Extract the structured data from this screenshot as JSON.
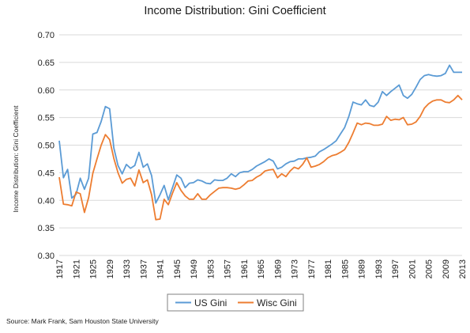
{
  "chart_data": {
    "type": "line",
    "title": "Income Distribution: Gini Coefficient",
    "ylabel": "Income Distribution: Gini Coefficient",
    "xlabel": "",
    "ylim": [
      0.3,
      0.7
    ],
    "xlim": [
      1917,
      2013
    ],
    "ytick_labels": [
      "0.30",
      "0.35",
      "0.40",
      "0.45",
      "0.50",
      "0.55",
      "0.60",
      "0.65",
      "0.70"
    ],
    "yticks": [
      0.3,
      0.35,
      0.4,
      0.45,
      0.5,
      0.55,
      0.6,
      0.65,
      0.7
    ],
    "xtick_labels": [
      "1917",
      "1921",
      "1925",
      "1929",
      "1933",
      "1937",
      "1941",
      "1945",
      "1949",
      "1953",
      "1957",
      "1961",
      "1965",
      "1969",
      "1973",
      "1977",
      "1981",
      "1985",
      "1989",
      "1993",
      "1997",
      "2001",
      "2005",
      "2009",
      "2013"
    ],
    "xticks": [
      1917,
      1921,
      1925,
      1929,
      1933,
      1937,
      1941,
      1945,
      1949,
      1953,
      1957,
      1961,
      1965,
      1969,
      1973,
      1977,
      1981,
      1985,
      1989,
      1993,
      1997,
      2001,
      2005,
      2009,
      2013
    ],
    "grid": "horizontal",
    "legend_position": "bottom",
    "series": [
      {
        "name": "US Gini",
        "color": "#5b9bd5",
        "x": [
          1917,
          1918,
          1919,
          1920,
          1921,
          1922,
          1923,
          1924,
          1925,
          1926,
          1927,
          1928,
          1929,
          1930,
          1931,
          1932,
          1933,
          1934,
          1935,
          1936,
          1937,
          1938,
          1939,
          1940,
          1941,
          1942,
          1943,
          1944,
          1945,
          1946,
          1947,
          1948,
          1949,
          1950,
          1951,
          1952,
          1953,
          1954,
          1955,
          1956,
          1957,
          1958,
          1959,
          1960,
          1961,
          1962,
          1963,
          1964,
          1965,
          1966,
          1967,
          1968,
          1969,
          1970,
          1971,
          1972,
          1973,
          1974,
          1975,
          1976,
          1977,
          1978,
          1979,
          1980,
          1981,
          1982,
          1983,
          1984,
          1985,
          1986,
          1987,
          1988,
          1989,
          1990,
          1991,
          1992,
          1993,
          1994,
          1995,
          1996,
          1997,
          1998,
          1999,
          2000,
          2001,
          2002,
          2003,
          2004,
          2005,
          2006,
          2007,
          2008,
          2009,
          2010,
          2011,
          2012,
          2013
        ],
        "values": [
          0.508,
          0.441,
          0.456,
          0.404,
          0.411,
          0.44,
          0.42,
          0.44,
          0.52,
          0.523,
          0.543,
          0.57,
          0.566,
          0.495,
          0.463,
          0.448,
          0.465,
          0.458,
          0.463,
          0.487,
          0.46,
          0.466,
          0.445,
          0.395,
          0.41,
          0.427,
          0.401,
          0.423,
          0.446,
          0.44,
          0.423,
          0.431,
          0.432,
          0.437,
          0.435,
          0.431,
          0.43,
          0.437,
          0.436,
          0.436,
          0.44,
          0.448,
          0.443,
          0.45,
          0.452,
          0.452,
          0.456,
          0.462,
          0.466,
          0.47,
          0.475,
          0.471,
          0.457,
          0.46,
          0.466,
          0.47,
          0.471,
          0.475,
          0.475,
          0.477,
          0.478,
          0.48,
          0.488,
          0.492,
          0.497,
          0.502,
          0.508,
          0.52,
          0.532,
          0.552,
          0.578,
          0.575,
          0.573,
          0.582,
          0.572,
          0.57,
          0.578,
          0.597,
          0.59,
          0.597,
          0.603,
          0.609,
          0.59,
          0.585,
          0.592,
          0.605,
          0.619,
          0.626,
          0.628,
          0.626,
          0.625,
          0.626,
          0.63,
          0.645,
          0.632,
          0.632,
          0.632
        ]
      },
      {
        "name": "Wisc Gini",
        "color": "#ed7d31",
        "x": [
          1917,
          1918,
          1919,
          1920,
          1921,
          1922,
          1923,
          1924,
          1925,
          1926,
          1927,
          1928,
          1929,
          1930,
          1931,
          1932,
          1933,
          1934,
          1935,
          1936,
          1937,
          1938,
          1939,
          1940,
          1941,
          1942,
          1943,
          1944,
          1945,
          1946,
          1947,
          1948,
          1949,
          1950,
          1951,
          1952,
          1953,
          1954,
          1955,
          1956,
          1957,
          1958,
          1959,
          1960,
          1961,
          1962,
          1963,
          1964,
          1965,
          1966,
          1967,
          1968,
          1969,
          1970,
          1971,
          1972,
          1973,
          1974,
          1975,
          1976,
          1977,
          1978,
          1979,
          1980,
          1981,
          1982,
          1983,
          1984,
          1985,
          1986,
          1987,
          1988,
          1989,
          1990,
          1991,
          1992,
          1993,
          1994,
          1995,
          1996,
          1997,
          1998,
          1999,
          2000,
          2001,
          2002,
          2003,
          2004,
          2005,
          2006,
          2007,
          2008,
          2009,
          2010,
          2011,
          2012,
          2013
        ],
        "values": [
          0.442,
          0.393,
          0.392,
          0.39,
          0.415,
          0.412,
          0.378,
          0.405,
          0.449,
          0.475,
          0.5,
          0.519,
          0.51,
          0.476,
          0.45,
          0.431,
          0.438,
          0.44,
          0.426,
          0.455,
          0.432,
          0.437,
          0.41,
          0.365,
          0.366,
          0.402,
          0.392,
          0.413,
          0.432,
          0.418,
          0.408,
          0.402,
          0.402,
          0.412,
          0.402,
          0.402,
          0.41,
          0.416,
          0.422,
          0.423,
          0.423,
          0.422,
          0.42,
          0.422,
          0.428,
          0.435,
          0.436,
          0.442,
          0.446,
          0.453,
          0.455,
          0.456,
          0.441,
          0.448,
          0.443,
          0.453,
          0.46,
          0.457,
          0.465,
          0.477,
          0.46,
          0.462,
          0.465,
          0.47,
          0.477,
          0.481,
          0.483,
          0.487,
          0.492,
          0.505,
          0.522,
          0.54,
          0.537,
          0.54,
          0.539,
          0.536,
          0.536,
          0.538,
          0.552,
          0.545,
          0.547,
          0.546,
          0.55,
          0.537,
          0.538,
          0.542,
          0.552,
          0.567,
          0.575,
          0.58,
          0.582,
          0.582,
          0.578,
          0.577,
          0.582,
          0.59,
          0.582
        ]
      }
    ],
    "source": "Source: Mark Frank, Sam Houston State University"
  }
}
